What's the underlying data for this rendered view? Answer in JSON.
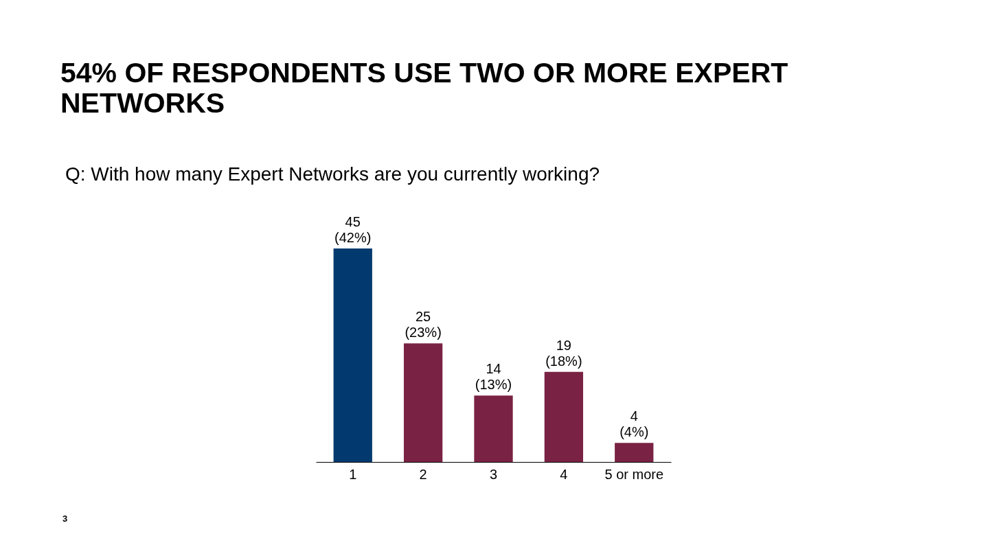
{
  "chart_data": {
    "type": "bar",
    "title": "54% OF RESPONDENTS USE TWO OR MORE EXPERT NETWORKS",
    "subtitle": "Q: With how many Expert Networks are you currently working?",
    "categories": [
      "1",
      "2",
      "3",
      "4",
      "5 or more"
    ],
    "values": [
      45,
      25,
      14,
      19,
      4
    ],
    "colors": [
      "#023a6f",
      "#7a2244",
      "#7a2244",
      "#7a2244",
      "#7a2244"
    ],
    "value_labels": [
      "45\n(42%)",
      "25\n(23%)",
      "14\n(13%)",
      "19\n(18%)",
      "4\n(4%)"
    ],
    "annotations": [
      "3"
    ]
  }
}
